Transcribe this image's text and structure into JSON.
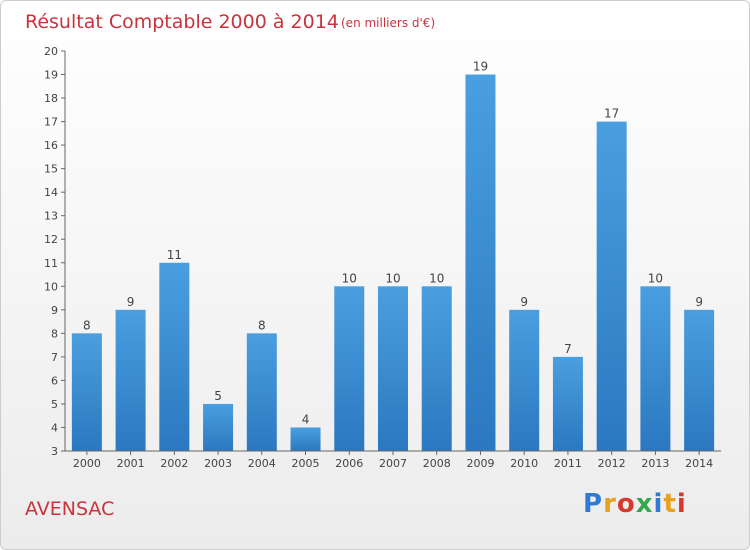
{
  "chart_data": {
    "type": "bar",
    "title": "Résultat Comptable 2000 à 2014",
    "subtitle": "(en milliers d'€)",
    "categories": [
      "2000",
      "2001",
      "2002",
      "2003",
      "2004",
      "2005",
      "2006",
      "2007",
      "2008",
      "2009",
      "2010",
      "2011",
      "2012",
      "2013",
      "2014"
    ],
    "values": [
      8,
      9,
      11,
      5,
      8,
      4,
      10,
      10,
      10,
      19,
      9,
      7,
      17,
      10,
      9
    ],
    "ylim": [
      3,
      20
    ],
    "yticks": [
      3,
      4,
      5,
      6,
      7,
      8,
      9,
      10,
      11,
      12,
      13,
      14,
      15,
      16,
      17,
      18,
      19,
      20
    ],
    "xlabel": "",
    "ylabel": "",
    "bar_color": "#4a9fe0",
    "bar_color_dark": "#2b78c0",
    "grid": false
  },
  "footer": {
    "place_name": "AVENSAC",
    "logo_text": "Proxiti",
    "logo_colors": [
      "#2e7bd6",
      "#e8a020",
      "#d63a2e",
      "#35a84a",
      "#2e7bd6",
      "#e8a020",
      "#d63a2e"
    ]
  }
}
